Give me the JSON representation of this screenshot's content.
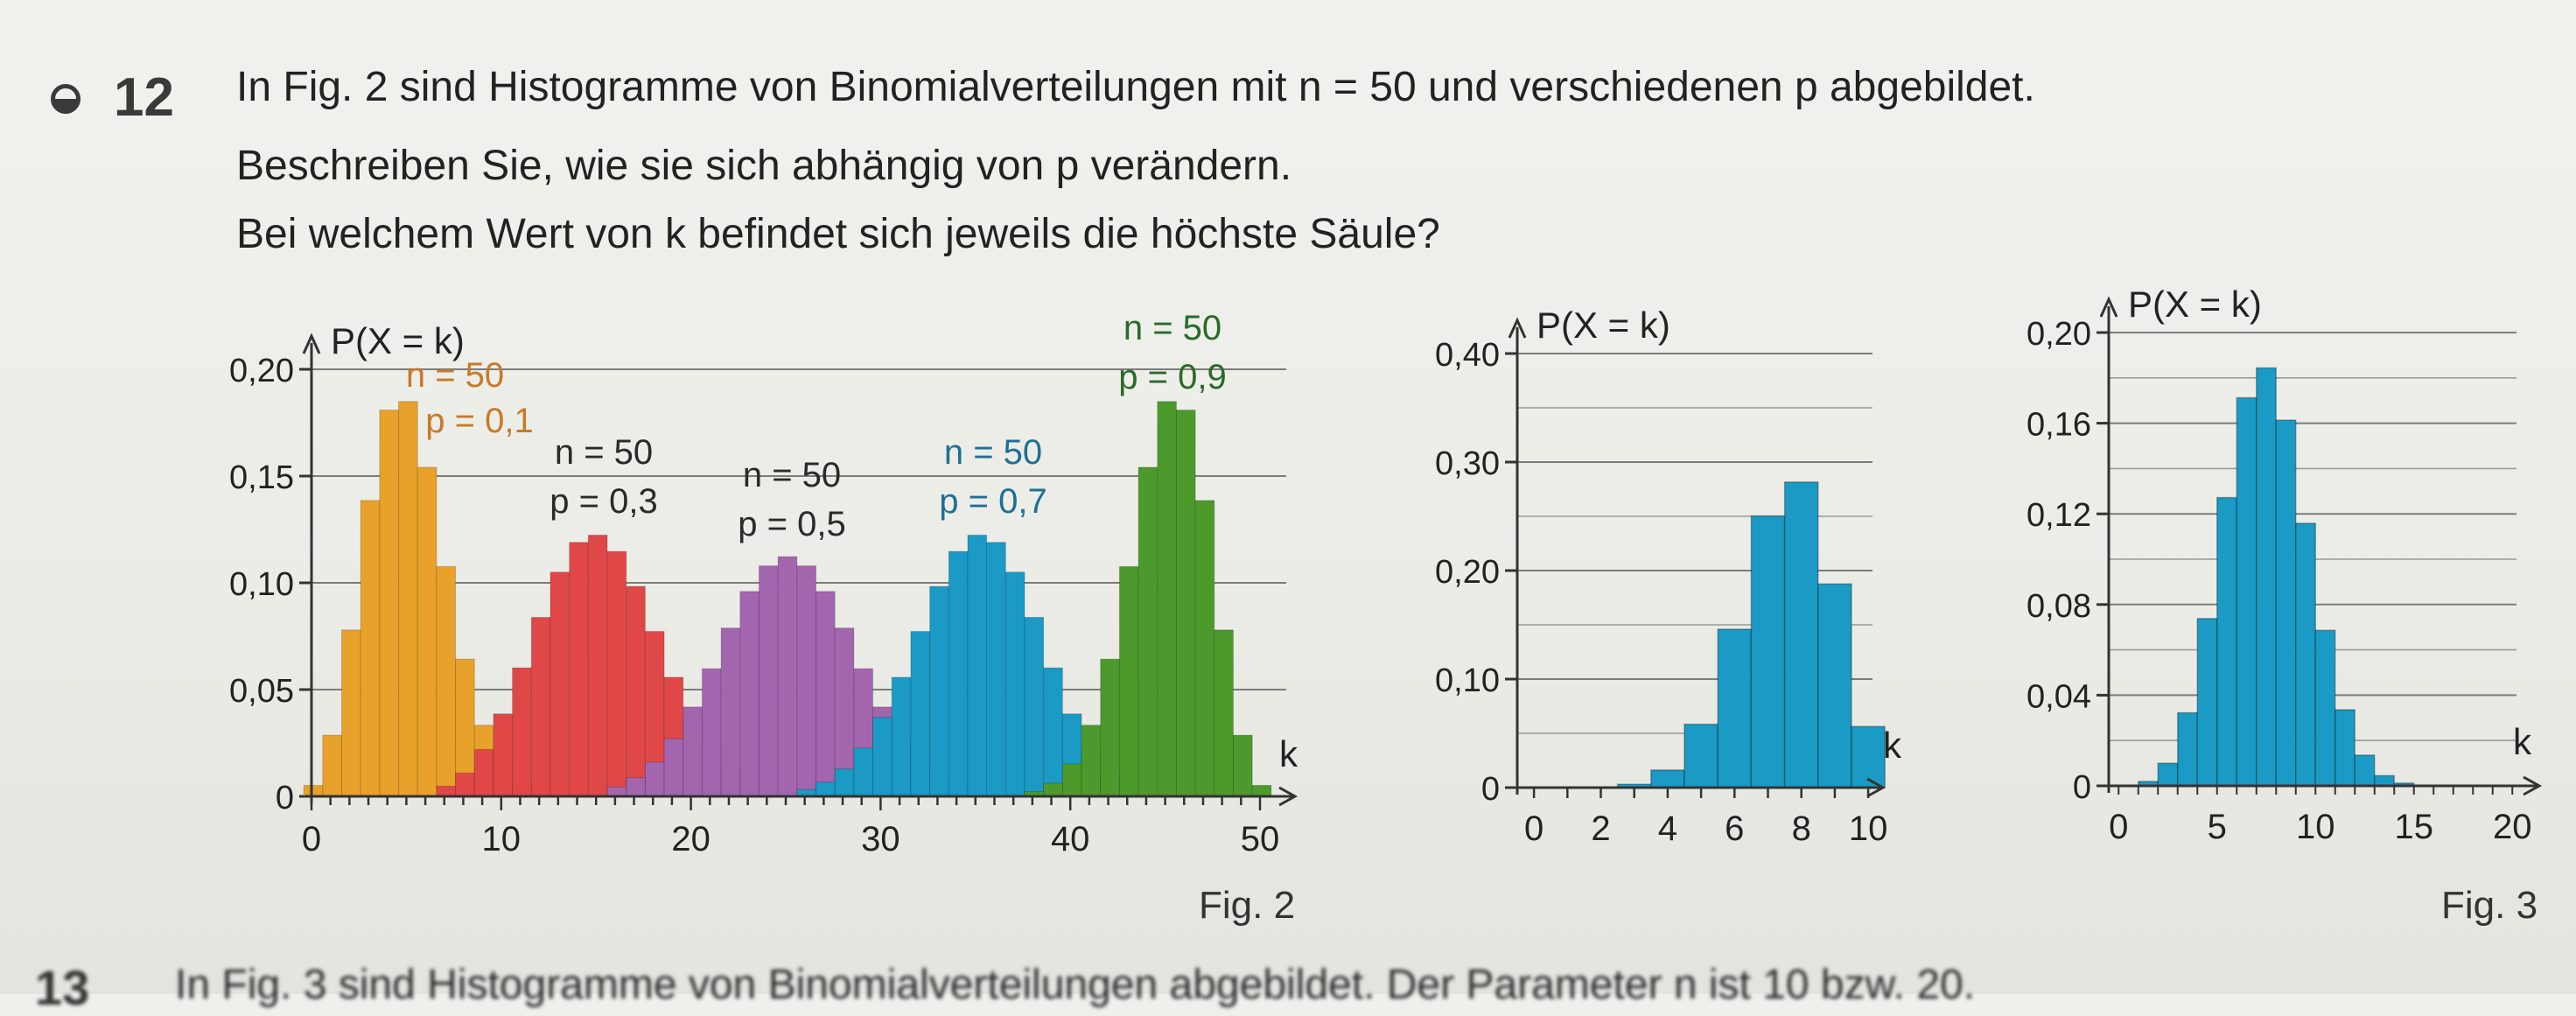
{
  "exercise": {
    "number": "12",
    "line1": "In Fig. 2 sind Histogramme von Binomialverteilungen mit  n = 50  und verschiedenen p abgebildet.",
    "line2": "Beschreiben Sie, wie sie sich abhängig von p verändern.",
    "line3": "Bei welchem Wert von k befindet sich jeweils die höchste Säule?"
  },
  "captions": {
    "fig2": "Fig. 2",
    "fig3": "Fig. 3"
  },
  "next_exercise": {
    "number": "13",
    "text": "In Fig. 3 sind Histogramme von Binomialverteilungen abgebildet. Der Parameter n ist 10 bzw. 20."
  },
  "chart_data": [
    {
      "type": "bar",
      "id": "fig2",
      "ylabel": "P(X = k)",
      "xlabel": "k",
      "xlim": [
        0,
        50
      ],
      "ylim": [
        0,
        0.2
      ],
      "xticks": [
        0,
        10,
        20,
        30,
        40,
        50
      ],
      "yticks": [
        0,
        0.05,
        0.1,
        0.15,
        0.2
      ],
      "ytick_labels": [
        "0",
        "0,05",
        "0,10",
        "0,15",
        "0,20"
      ],
      "n": 50,
      "series": [
        {
          "label_n": "n = 50",
          "label_p": "p = 0,1",
          "p": 0.1,
          "color": "#e8a12a",
          "text_color": "#c77a28"
        },
        {
          "label_n": "n = 50",
          "label_p": "p = 0,3",
          "p": 0.3,
          "color": "#e04848",
          "text_color": "#2a2a2a"
        },
        {
          "label_n": "n = 50",
          "label_p": "p = 0,5",
          "p": 0.5,
          "color": "#a365ad",
          "text_color": "#2a2a2a"
        },
        {
          "label_n": "n = 50",
          "label_p": "p = 0,7",
          "p": 0.7,
          "color": "#1a9ac4",
          "text_color": "#1f6f96"
        },
        {
          "label_n": "n = 50",
          "label_p": "p = 0,9",
          "p": 0.9,
          "color": "#4c9a2c",
          "text_color": "#2a6a2a"
        }
      ],
      "grid": true
    },
    {
      "type": "bar",
      "id": "fig3-left",
      "ylabel": "P(X = k)",
      "xlabel": "k",
      "xlim": [
        0,
        10
      ],
      "ylim": [
        0,
        0.4
      ],
      "xticks": [
        0,
        2,
        4,
        6,
        8,
        10
      ],
      "yticks": [
        0,
        0.1,
        0.2,
        0.3,
        0.4
      ],
      "ytick_labels": [
        "0",
        "0,10",
        "0,20",
        "0,30",
        "0,40"
      ],
      "n": 10,
      "p": 0.75,
      "color": "#1a9ac4",
      "grid": true
    },
    {
      "type": "bar",
      "id": "fig3-right",
      "ylabel": "P(X = k)",
      "xlabel": "k",
      "xlim": [
        0,
        20
      ],
      "ylim": [
        0,
        0.2
      ],
      "xticks": [
        0,
        5,
        10,
        15,
        20
      ],
      "yticks": [
        0,
        0.04,
        0.08,
        0.12,
        0.16,
        0.2
      ],
      "ytick_labels": [
        "0",
        "0,04",
        "0,08",
        "0,12",
        "0,16",
        "0,20"
      ],
      "n": 20,
      "p": 0.35,
      "color": "#1a9ac4",
      "grid": true
    }
  ]
}
